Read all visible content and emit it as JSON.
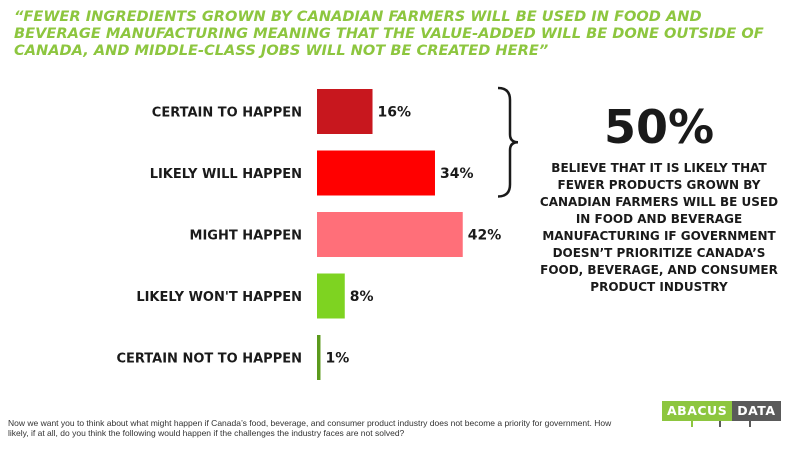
{
  "title": "“FEWER INGREDIENTS GROWN BY CANADIAN FARMERS WILL BE USED IN FOOD AND BEVERAGE MANUFACTURING MEANING THAT THE VALUE-ADDED WILL BE DONE OUTSIDE OF CANADA, AND MIDDLE-CLASS JOBS WILL NOT BE CREATED HERE”",
  "summary": {
    "value": "50%",
    "description": "BELIEVE THAT IT IS LIKELY THAT FEWER PRODUCTS GROWN BY CANADIAN FARMERS WILL BE USED IN FOOD AND BEVERAGE MANUFACTURING IF GOVERNMENT DOESN’T PRIORITIZE CANADA’S FOOD, BEVERAGE, AND CONSUMER PRODUCT INDUSTRY"
  },
  "footnote": "Now we want you to think about what might happen if Canada’s food, beverage, and consumer product industry does not become a priority for government. How likely, if at all, do you think the following would happen if the challenges the industry faces are not solved?",
  "logo": {
    "part1": "ABACUS",
    "part2": "DATA"
  },
  "colors": {
    "title": "#8dc63f",
    "certain_to_happen": "#c8171e",
    "likely_will_happen": "#ff0000",
    "might_happen": "#ff6f79",
    "likely_wont_happen": "#7ed321",
    "certain_not_to_happen": "#5b9a1c"
  },
  "chart_data": {
    "type": "bar",
    "orientation": "horizontal",
    "categories": [
      "CERTAIN TO HAPPEN",
      "LIKELY WILL HAPPEN",
      "MIGHT HAPPEN",
      "LIKELY WON'T HAPPEN",
      "CERTAIN NOT TO HAPPEN"
    ],
    "values": [
      16,
      34,
      42,
      8,
      1
    ],
    "value_labels": [
      "16%",
      "34%",
      "42%",
      "8%",
      "1%"
    ],
    "bar_colors": [
      "#c8171e",
      "#ff0000",
      "#ff6f79",
      "#7ed321",
      "#5b9a1c"
    ],
    "xlim": [
      0,
      100
    ],
    "grid": false,
    "legend": "none",
    "bracket_groups": [
      [
        0,
        1
      ]
    ]
  }
}
